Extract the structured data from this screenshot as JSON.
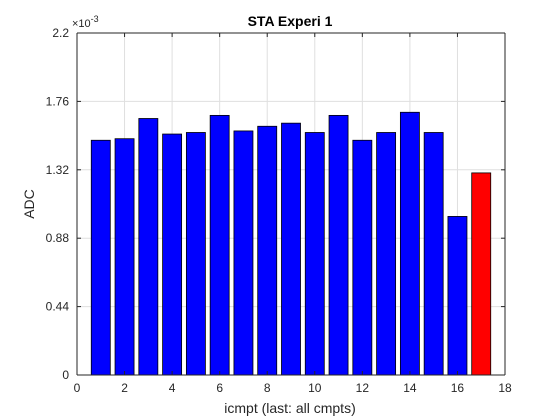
{
  "chart_data": {
    "type": "bar",
    "title": "STA Experi 1",
    "xlabel": "icmpt (last: all cmpts)",
    "ylabel": "ADC",
    "y_exponent_label": "×10",
    "y_exponent_power": "-3",
    "xlim": [
      0,
      18
    ],
    "ylim": [
      0,
      2.2
    ],
    "x_ticks": [
      "0",
      "2",
      "4",
      "6",
      "8",
      "10",
      "12",
      "14",
      "16",
      "18"
    ],
    "y_ticks": [
      "0",
      "0.44",
      "0.88",
      "1.32",
      "1.76",
      "2.2"
    ],
    "grid": true,
    "colors": {
      "normal_bar": "#0000ff",
      "last_bar": "#ff0000",
      "edge": "#000000",
      "grid": "#dfdfdf"
    },
    "x": [
      1,
      2,
      3,
      4,
      5,
      6,
      7,
      8,
      9,
      10,
      11,
      12,
      13,
      14,
      15,
      16,
      17
    ],
    "values": [
      1.51,
      1.52,
      1.65,
      1.55,
      1.56,
      1.67,
      1.57,
      1.6,
      1.62,
      1.56,
      1.67,
      1.51,
      1.56,
      1.69,
      1.56,
      1.02,
      1.3
    ]
  }
}
